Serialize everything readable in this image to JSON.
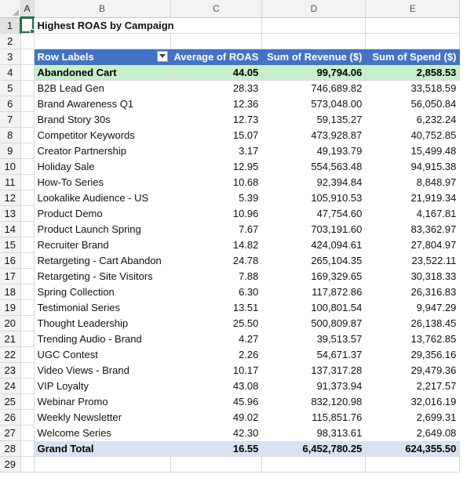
{
  "columns": [
    "A",
    "B",
    "C",
    "D",
    "E"
  ],
  "selected_column": "A",
  "selected_row": 1,
  "sheet_title": "Highest ROAS by Campaign",
  "pivot": {
    "headers": [
      "Row Labels",
      "Average of ROAS",
      "Sum of Revenue ($)",
      "Sum of Spend ($)"
    ],
    "header_color": "#4472c4",
    "highlight_color": "#c6efce",
    "total_color": "#d9e1f2",
    "rows": [
      {
        "label": "Abandoned Cart",
        "roas": "44.05",
        "revenue": "99,794.06",
        "spend": "2,858.53",
        "highlight": true
      },
      {
        "label": "B2B Lead Gen",
        "roas": "28.33",
        "revenue": "746,689.82",
        "spend": "33,518.59"
      },
      {
        "label": "Brand Awareness Q1",
        "roas": "12.36",
        "revenue": "573,048.00",
        "spend": "56,050.84"
      },
      {
        "label": "Brand Story 30s",
        "roas": "12.73",
        "revenue": "59,135.27",
        "spend": "6,232.24"
      },
      {
        "label": "Competitor Keywords",
        "roas": "15.07",
        "revenue": "473,928.87",
        "spend": "40,752.85"
      },
      {
        "label": "Creator Partnership",
        "roas": "3.17",
        "revenue": "49,193.79",
        "spend": "15,499.48"
      },
      {
        "label": "Holiday Sale",
        "roas": "12.95",
        "revenue": "554,563.48",
        "spend": "94,915.38"
      },
      {
        "label": "How-To Series",
        "roas": "10.68",
        "revenue": "92,394.84",
        "spend": "8,848.97"
      },
      {
        "label": "Lookalike Audience - US",
        "roas": "5.39",
        "revenue": "105,910.53",
        "spend": "21,919.34"
      },
      {
        "label": "Product Demo",
        "roas": "10.96",
        "revenue": "47,754.60",
        "spend": "4,167.81"
      },
      {
        "label": "Product Launch Spring",
        "roas": "7.67",
        "revenue": "703,191.60",
        "spend": "83,362.97"
      },
      {
        "label": "Recruiter Brand",
        "roas": "14.82",
        "revenue": "424,094.61",
        "spend": "27,804.97"
      },
      {
        "label": "Retargeting - Cart Abandon",
        "roas": "24.78",
        "revenue": "265,104.35",
        "spend": "23,522.11"
      },
      {
        "label": "Retargeting - Site Visitors",
        "roas": "7.88",
        "revenue": "169,329.65",
        "spend": "30,318.33"
      },
      {
        "label": "Spring Collection",
        "roas": "6.30",
        "revenue": "117,872.86",
        "spend": "26,316.83"
      },
      {
        "label": "Testimonial Series",
        "roas": "13.51",
        "revenue": "100,801.54",
        "spend": "9,947.29"
      },
      {
        "label": "Thought Leadership",
        "roas": "25.50",
        "revenue": "500,809.87",
        "spend": "26,138.45"
      },
      {
        "label": "Trending Audio - Brand",
        "roas": "4.27",
        "revenue": "39,513.57",
        "spend": "13,762.85"
      },
      {
        "label": "UGC Contest",
        "roas": "2.26",
        "revenue": "54,671.37",
        "spend": "29,356.16"
      },
      {
        "label": "Video Views - Brand",
        "roas": "10.17",
        "revenue": "137,317.28",
        "spend": "29,479.36"
      },
      {
        "label": "VIP Loyalty",
        "roas": "43.08",
        "revenue": "91,373.94",
        "spend": "2,217.57"
      },
      {
        "label": "Webinar Promo",
        "roas": "45.96",
        "revenue": "832,120.98",
        "spend": "32,016.19"
      },
      {
        "label": "Weekly Newsletter",
        "roas": "49.02",
        "revenue": "115,851.76",
        "spend": "2,699.31"
      },
      {
        "label": "Welcome Series",
        "roas": "42.30",
        "revenue": "98,313.61",
        "spend": "2,649.08"
      }
    ],
    "grand_total": {
      "label": "Grand Total",
      "roas": "16.55",
      "revenue": "6,452,780.25",
      "spend": "624,355.50"
    }
  },
  "row_numbers": [
    "1",
    "2",
    "3",
    "4",
    "5",
    "6",
    "7",
    "8",
    "9",
    "10",
    "11",
    "12",
    "13",
    "14",
    "15",
    "16",
    "17",
    "18",
    "19",
    "20",
    "21",
    "22",
    "23",
    "24",
    "25",
    "26",
    "27",
    "28",
    "29"
  ]
}
